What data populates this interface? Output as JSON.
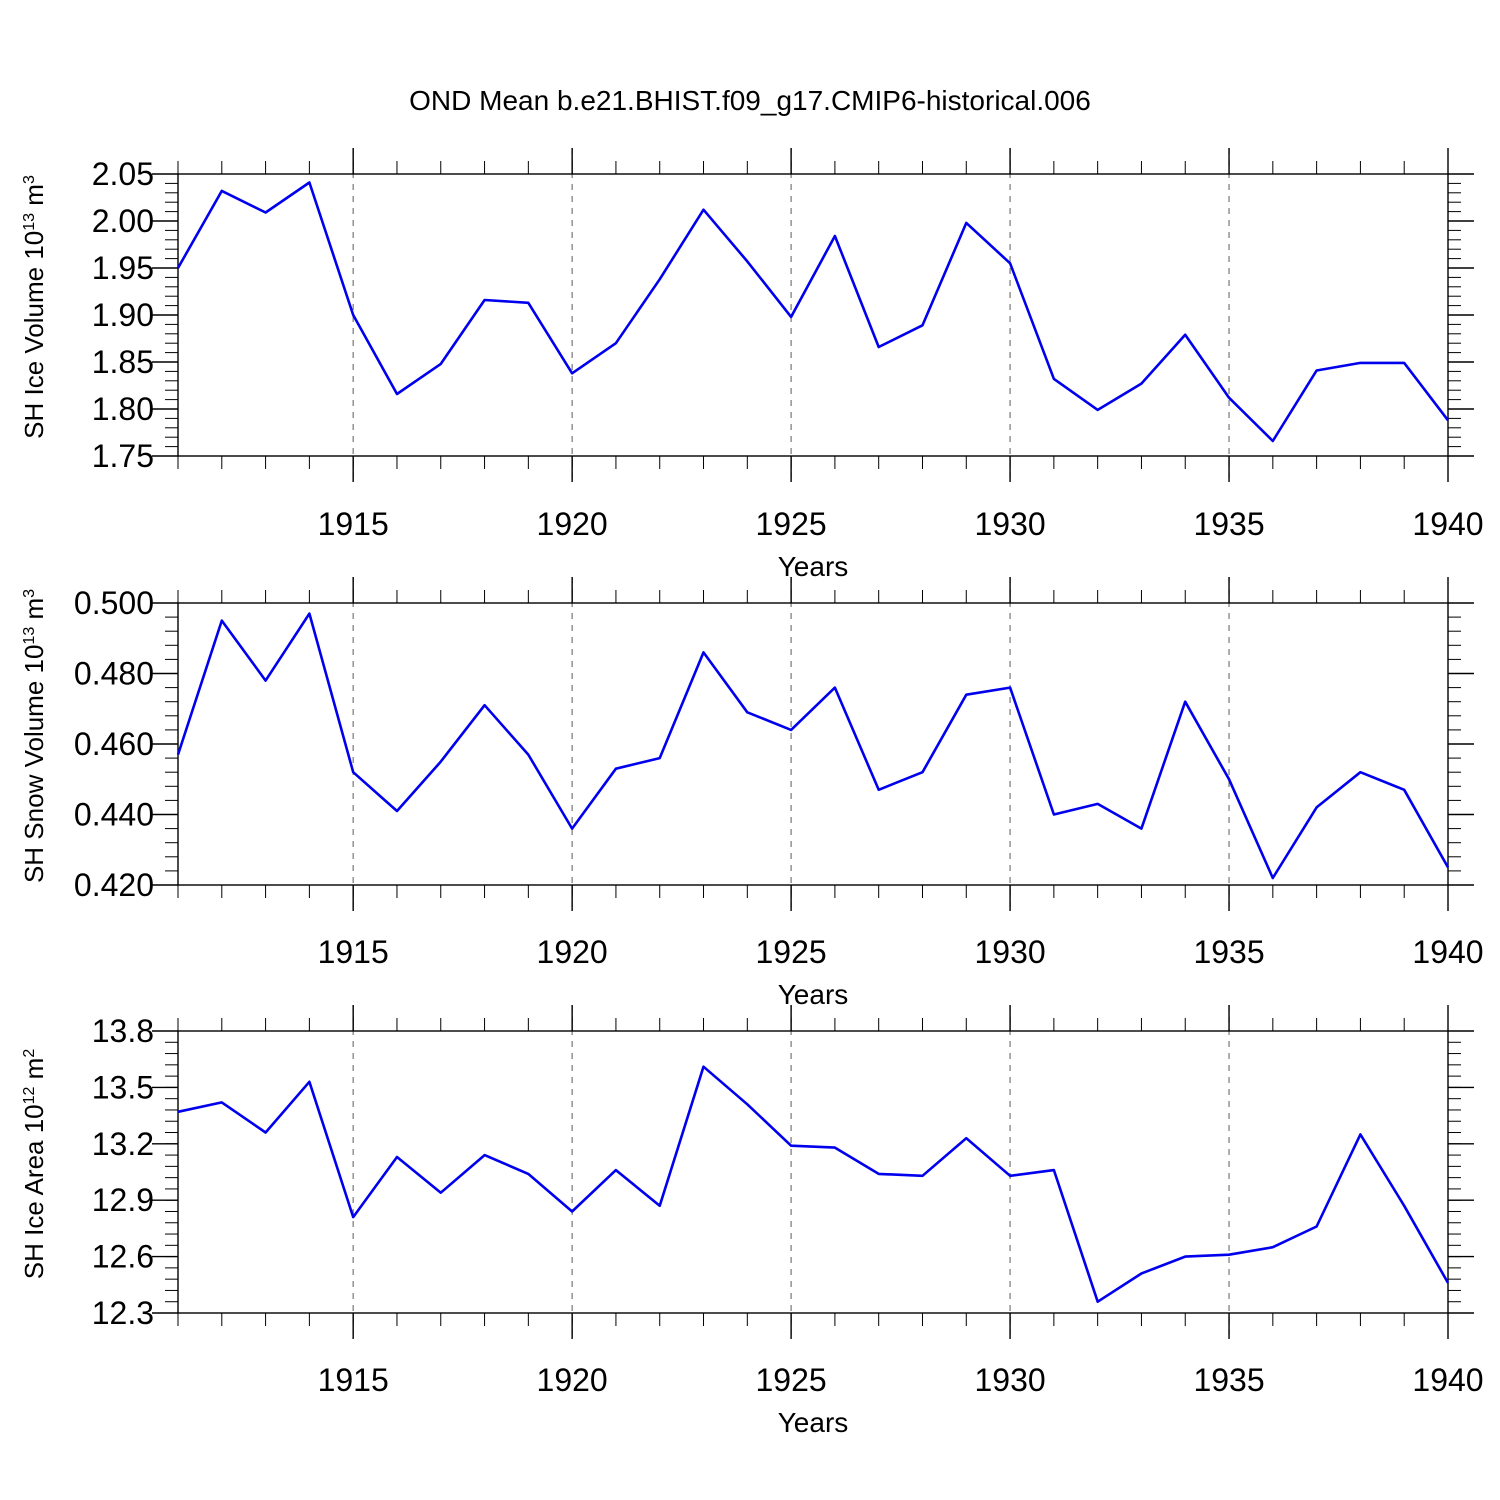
{
  "title": "OND Mean b.e21.BHIST.f09_g17.CMIP6-historical.006",
  "chart_data": [
    {
      "type": "line",
      "ylabel": "SH Ice Volume 10",
      "ylabel_exp": "13",
      "ylabel_unit": " m",
      "ylabel_unit_exp": "3",
      "xlabel": "Years",
      "xlim": [
        1911,
        1940
      ],
      "ylim": [
        1.75,
        2.05
      ],
      "y_ticks": [
        1.75,
        1.8,
        1.85,
        1.9,
        1.95,
        2.0,
        2.05
      ],
      "y_tick_labels": [
        "1.75",
        "1.80",
        "1.85",
        "1.90",
        "1.95",
        "2.00",
        "2.05"
      ],
      "y_minor_step": 0.01,
      "x_ticks": [
        1915,
        1920,
        1925,
        1930,
        1935,
        1940
      ],
      "x_tick_labels": [
        "1915",
        "1920",
        "1925",
        "1930",
        "1935",
        "1940"
      ],
      "line_color": "#0000ee",
      "x": [
        1911,
        1912,
        1913,
        1914,
        1915,
        1916,
        1917,
        1918,
        1919,
        1920,
        1921,
        1922,
        1923,
        1924,
        1925,
        1926,
        1927,
        1928,
        1929,
        1930,
        1931,
        1932,
        1933,
        1934,
        1935,
        1936,
        1937,
        1938,
        1939,
        1940
      ],
      "values": [
        1.95,
        2.032,
        2.009,
        2.041,
        1.9,
        1.816,
        1.848,
        1.916,
        1.913,
        1.838,
        1.87,
        1.938,
        2.012,
        1.957,
        1.898,
        1.984,
        1.866,
        1.889,
        1.998,
        1.955,
        1.832,
        1.799,
        1.827,
        1.879,
        1.812,
        1.766,
        1.841,
        1.849,
        1.849,
        1.788
      ]
    },
    {
      "type": "line",
      "ylabel": "SH Snow Volume 10",
      "ylabel_exp": "13",
      "ylabel_unit": " m",
      "ylabel_unit_exp": "3",
      "xlabel": "Years",
      "xlim": [
        1911,
        1940
      ],
      "ylim": [
        0.42,
        0.5
      ],
      "y_ticks": [
        0.42,
        0.44,
        0.46,
        0.48,
        0.5
      ],
      "y_tick_labels": [
        "0.420",
        "0.440",
        "0.460",
        "0.480",
        "0.500"
      ],
      "y_minor_step": 0.004,
      "x_ticks": [
        1915,
        1920,
        1925,
        1930,
        1935,
        1940
      ],
      "x_tick_labels": [
        "1915",
        "1920",
        "1925",
        "1930",
        "1935",
        "1940"
      ],
      "line_color": "#0000ee",
      "x": [
        1911,
        1912,
        1913,
        1914,
        1915,
        1916,
        1917,
        1918,
        1919,
        1920,
        1921,
        1922,
        1923,
        1924,
        1925,
        1926,
        1927,
        1928,
        1929,
        1930,
        1931,
        1932,
        1933,
        1934,
        1935,
        1936,
        1937,
        1938,
        1939,
        1940
      ],
      "values": [
        0.457,
        0.495,
        0.478,
        0.497,
        0.452,
        0.441,
        0.455,
        0.471,
        0.457,
        0.436,
        0.453,
        0.456,
        0.486,
        0.469,
        0.464,
        0.476,
        0.447,
        0.452,
        0.474,
        0.476,
        0.44,
        0.443,
        0.436,
        0.472,
        0.45,
        0.422,
        0.442,
        0.452,
        0.447,
        0.425
      ]
    },
    {
      "type": "line",
      "ylabel": "SH Ice Area 10",
      "ylabel_exp": "12",
      "ylabel_unit": " m",
      "ylabel_unit_exp": "2",
      "xlabel": "Years",
      "xlim": [
        1911,
        1940
      ],
      "ylim": [
        12.3,
        13.8
      ],
      "y_ticks": [
        12.3,
        12.6,
        12.9,
        13.2,
        13.5,
        13.8
      ],
      "y_tick_labels": [
        "12.3",
        "12.6",
        "12.9",
        "13.2",
        "13.5",
        "13.8"
      ],
      "y_minor_step": 0.06,
      "x_ticks": [
        1915,
        1920,
        1925,
        1930,
        1935,
        1940
      ],
      "x_tick_labels": [
        "1915",
        "1920",
        "1925",
        "1930",
        "1935",
        "1940"
      ],
      "line_color": "#0000ee",
      "x": [
        1911,
        1912,
        1913,
        1914,
        1915,
        1916,
        1917,
        1918,
        1919,
        1920,
        1921,
        1922,
        1923,
        1924,
        1925,
        1926,
        1927,
        1928,
        1929,
        1930,
        1931,
        1932,
        1933,
        1934,
        1935,
        1936,
        1937,
        1938,
        1939,
        1940
      ],
      "values": [
        13.37,
        13.42,
        13.26,
        13.53,
        12.81,
        13.13,
        12.94,
        13.14,
        13.04,
        12.84,
        13.06,
        12.87,
        13.61,
        13.41,
        13.19,
        13.18,
        13.04,
        13.03,
        13.23,
        13.03,
        13.06,
        12.36,
        12.51,
        12.6,
        12.61,
        12.65,
        12.76,
        13.25,
        12.87,
        12.46
      ]
    }
  ]
}
